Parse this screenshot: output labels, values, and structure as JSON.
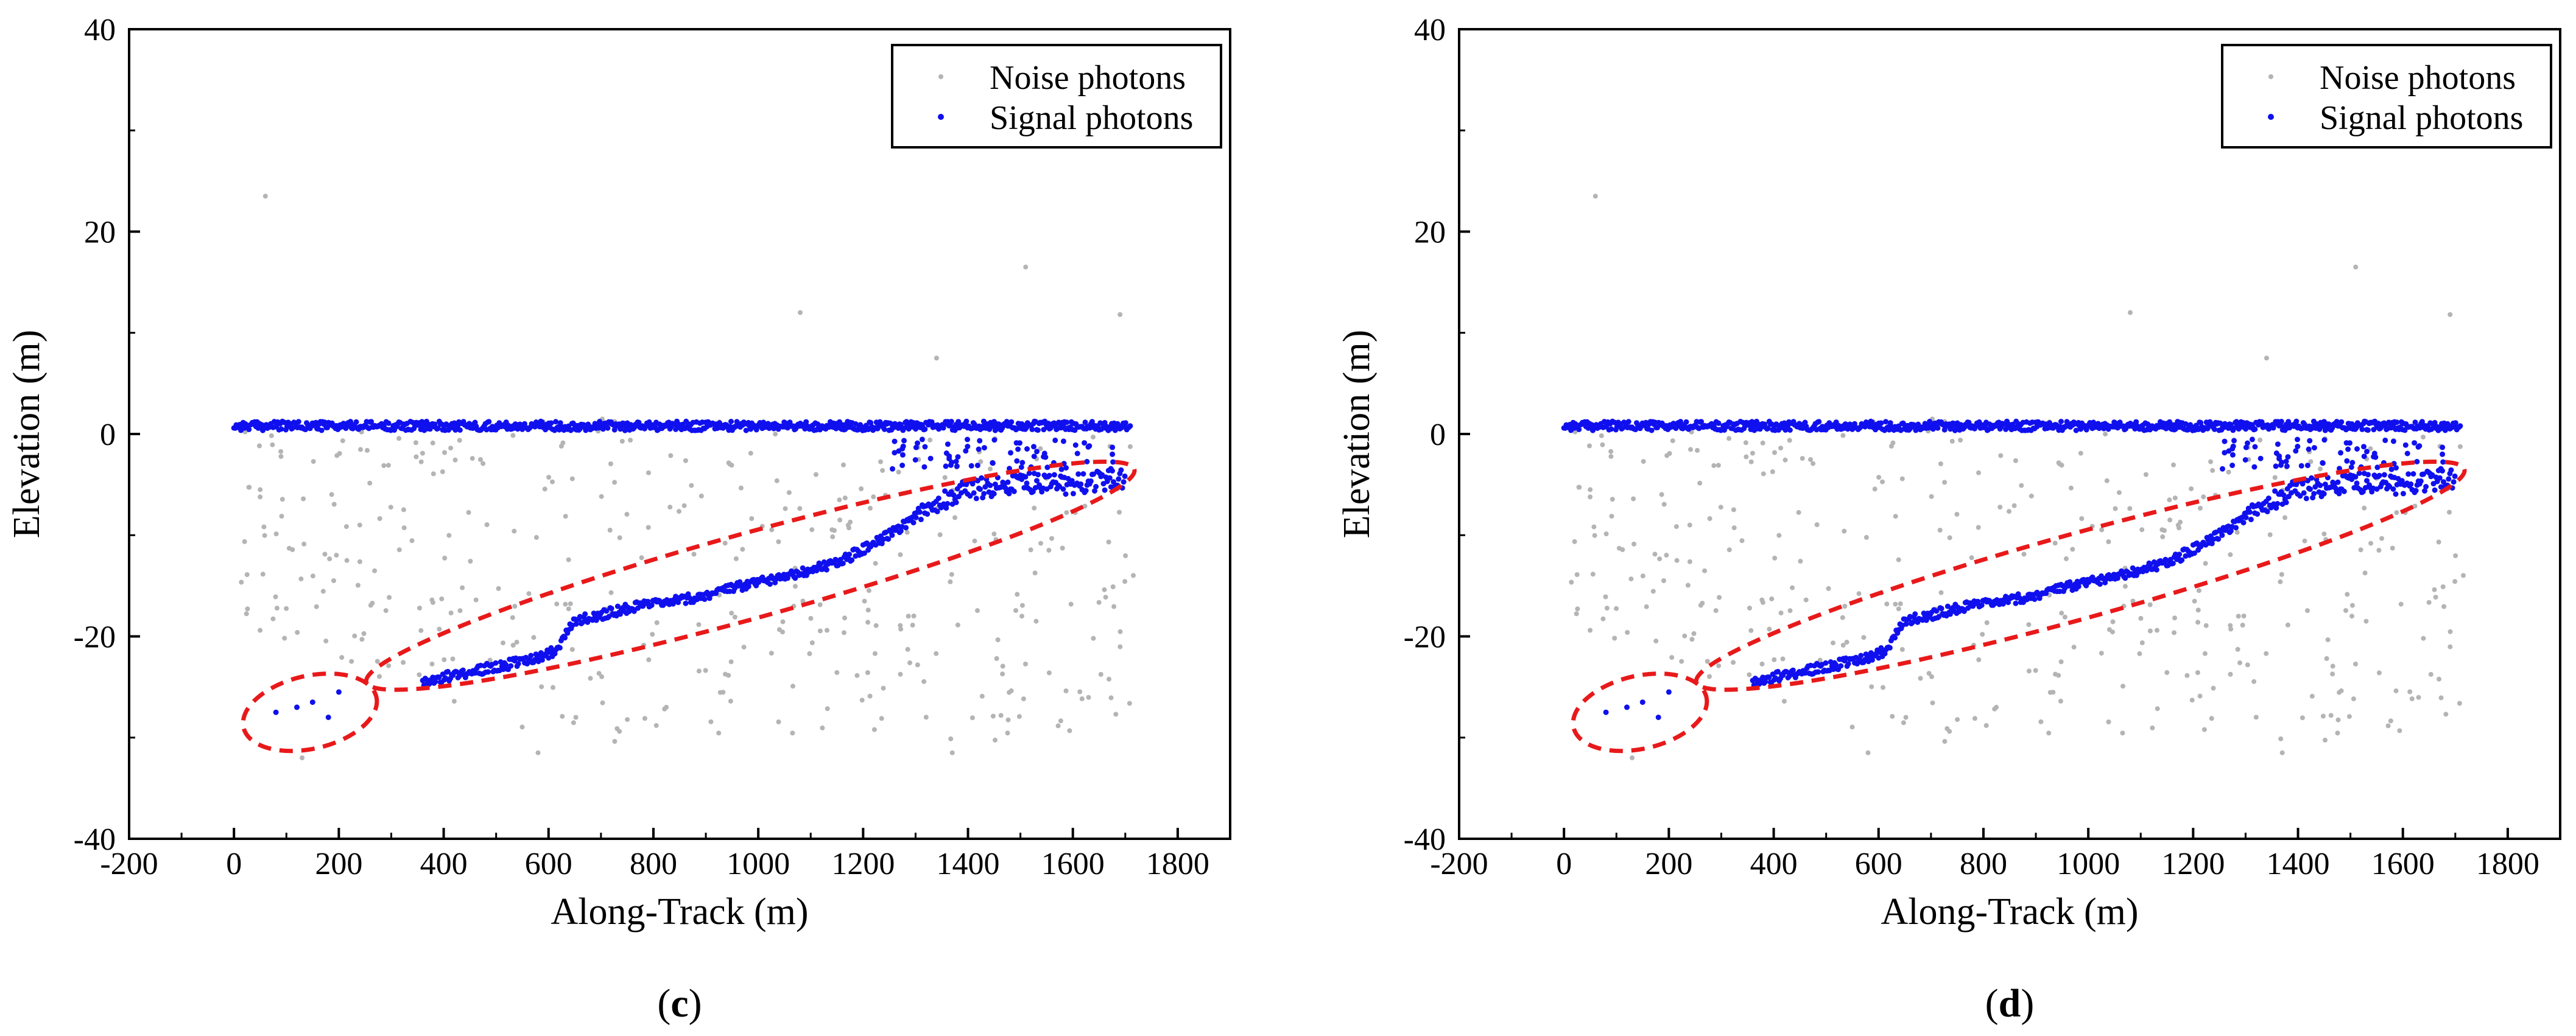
{
  "figure": {
    "panels": [
      {
        "id": "c",
        "letter": "c"
      },
      {
        "id": "d",
        "letter": "d"
      }
    ]
  },
  "chart_data": [
    {
      "type": "scatter",
      "panel": "c",
      "xlabel": "Along-Track (m)",
      "ylabel": "Elevation (m)",
      "xlim": [
        -200,
        1900
      ],
      "ylim": [
        -40,
        40
      ],
      "xticks": [
        -200,
        0,
        200,
        400,
        600,
        800,
        1000,
        1200,
        1400,
        1600,
        1800
      ],
      "yticks": [
        -40,
        -20,
        0,
        20,
        40
      ],
      "legend": {
        "placement": "top-right",
        "entries": [
          "Noise photons",
          "Signal photons"
        ]
      },
      "series": [
        {
          "name": "Noise photons",
          "color": "#b4b4b4",
          "description_points": [
            [
              60,
              23.5
            ],
            [
              1080,
              12
            ],
            [
              1510,
              16.5
            ],
            [
              1690,
              11.8
            ],
            [
              1340,
              7.5
            ],
            [
              50,
              -5.5
            ],
            [
              240,
              -9
            ],
            [
              580,
              -31.5
            ],
            [
              1370,
              -31.5
            ],
            [
              130,
              -32
            ],
            [
              1530,
              -18.5
            ]
          ]
        },
        {
          "name": "Signal photons",
          "color": "#1010ee",
          "segments": [
            {
              "kind": "surface",
              "x": [
                0,
                1710
              ],
              "y": 0.8
            },
            {
              "kind": "bottom",
              "points": [
                [
                  360,
                  -24.5
                ],
                [
                  450,
                  -23.5
                ],
                [
                  550,
                  -22.5
                ],
                [
                  610,
                  -21.5
                ],
                [
                  650,
                  -18.5
                ],
                [
                  750,
                  -17.2
                ],
                [
                  850,
                  -16.5
                ],
                [
                  950,
                  -15.3
                ],
                [
                  1050,
                  -14
                ],
                [
                  1150,
                  -12.8
                ],
                [
                  1250,
                  -10
                ],
                [
                  1330,
                  -7
                ],
                [
                  1400,
                  -5.5
                ],
                [
                  1500,
                  -4.8
                ],
                [
                  1600,
                  -5
                ],
                [
                  1700,
                  -4.3
                ]
              ]
            },
            {
              "kind": "deep-cluster",
              "points": [
                [
                  80,
                  -27.5
                ],
                [
                  120,
                  -27
                ],
                [
                  150,
                  -26.5
                ],
                [
                  180,
                  -28
                ],
                [
                  200,
                  -25.5
                ]
              ]
            }
          ]
        }
      ],
      "annotations": [
        {
          "type": "ellipse",
          "style": "dashed",
          "color": "#e8191a",
          "center": [
            985,
            -14
          ],
          "rx_data": 760,
          "ry_y": 4.2,
          "angle_deg": -15.5
        },
        {
          "type": "ellipse",
          "style": "dashed",
          "color": "#e8191a",
          "center": [
            145,
            -27.5
          ],
          "rx_data": 130,
          "ry_y": 3.6,
          "angle_deg": -13
        }
      ]
    },
    {
      "type": "scatter",
      "panel": "d",
      "xlabel": "Along-Track (m)",
      "ylabel": "Elevation (m)",
      "xlim": [
        -200,
        1900
      ],
      "ylim": [
        -40,
        40
      ],
      "xticks": [
        -200,
        0,
        200,
        400,
        600,
        800,
        1000,
        1200,
        1400,
        1600,
        1800
      ],
      "yticks": [
        -40,
        -20,
        0,
        20,
        40
      ],
      "legend": {
        "placement": "top-right",
        "entries": [
          "Noise photons",
          "Signal photons"
        ]
      },
      "series": [
        {
          "name": "Noise photons",
          "color": "#b4b4b4",
          "description_points": [
            [
              60,
              23.5
            ],
            [
              1080,
              12
            ],
            [
              1510,
              16.5
            ],
            [
              1690,
              11.8
            ],
            [
              1340,
              7.5
            ],
            [
              50,
              -5.5
            ],
            [
              240,
              -9
            ],
            [
              580,
              -31.5
            ],
            [
              1370,
              -31.5
            ],
            [
              130,
              -32
            ],
            [
              1530,
              -18.5
            ]
          ]
        },
        {
          "name": "Signal photons",
          "color": "#1010ee",
          "segments": [
            {
              "kind": "surface",
              "x": [
                0,
                1710
              ],
              "y": 0.8
            },
            {
              "kind": "bottom",
              "points": [
                [
                  360,
                  -24.5
                ],
                [
                  450,
                  -23.5
                ],
                [
                  550,
                  -22.5
                ],
                [
                  610,
                  -21.5
                ],
                [
                  650,
                  -18.5
                ],
                [
                  750,
                  -17.2
                ],
                [
                  850,
                  -16.5
                ],
                [
                  950,
                  -15.3
                ],
                [
                  1050,
                  -14
                ],
                [
                  1150,
                  -12.8
                ],
                [
                  1250,
                  -10
                ],
                [
                  1330,
                  -7
                ],
                [
                  1400,
                  -5.5
                ],
                [
                  1500,
                  -4.8
                ],
                [
                  1600,
                  -5
                ],
                [
                  1700,
                  -4.3
                ]
              ]
            },
            {
              "kind": "deep-cluster",
              "points": [
                [
                  80,
                  -27.5
                ],
                [
                  120,
                  -27
                ],
                [
                  150,
                  -26.5
                ],
                [
                  180,
                  -28
                ],
                [
                  200,
                  -25.5
                ]
              ]
            }
          ]
        }
      ],
      "annotations": [
        {
          "type": "ellipse",
          "style": "dashed",
          "color": "#e8191a",
          "center": [
            985,
            -14
          ],
          "rx_data": 760,
          "ry_y": 4.2,
          "angle_deg": -15.5
        },
        {
          "type": "ellipse",
          "style": "dashed",
          "color": "#e8191a",
          "center": [
            145,
            -27.5
          ],
          "rx_data": 130,
          "ry_y": 3.6,
          "angle_deg": -13
        }
      ]
    }
  ]
}
